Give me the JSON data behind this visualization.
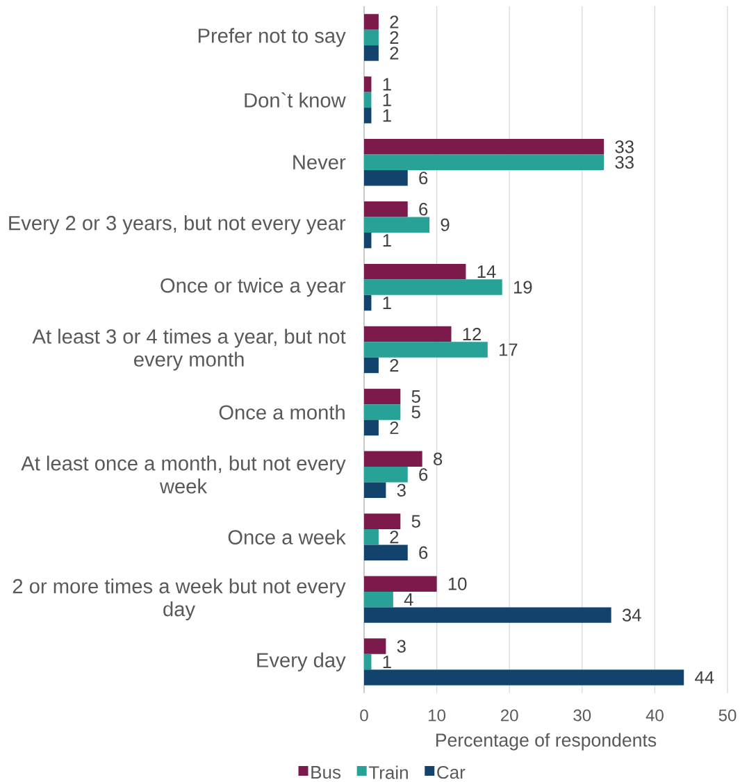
{
  "chart_data": {
    "type": "bar",
    "orientation": "horizontal",
    "xlabel": "Percentage of respondents",
    "categories": [
      "Prefer not to say",
      "Don`t know",
      "Never",
      "Every 2 or 3 years, but not every year",
      "Once or twice a year",
      "At least 3 or 4 times a year, but not every month",
      "Once a month",
      "At least once a month, but not every week",
      "Once a week",
      "2 or more times a week but not every day",
      "Every day"
    ],
    "series": [
      {
        "name": "Bus",
        "color": "#7b1a4b",
        "values": [
          2,
          1,
          33,
          6,
          14,
          12,
          5,
          8,
          5,
          10,
          3
        ]
      },
      {
        "name": "Train",
        "color": "#28a197",
        "values": [
          2,
          1,
          33,
          9,
          19,
          17,
          5,
          6,
          2,
          4,
          1
        ]
      },
      {
        "name": "Car",
        "color": "#12436d",
        "values": [
          2,
          1,
          6,
          1,
          1,
          2,
          2,
          3,
          6,
          34,
          44
        ]
      }
    ],
    "xlim": [
      0,
      50
    ],
    "xticks": [
      0,
      10,
      20,
      30,
      40,
      50
    ],
    "grid": "x",
    "legend": "bottom",
    "data_labels": true
  }
}
